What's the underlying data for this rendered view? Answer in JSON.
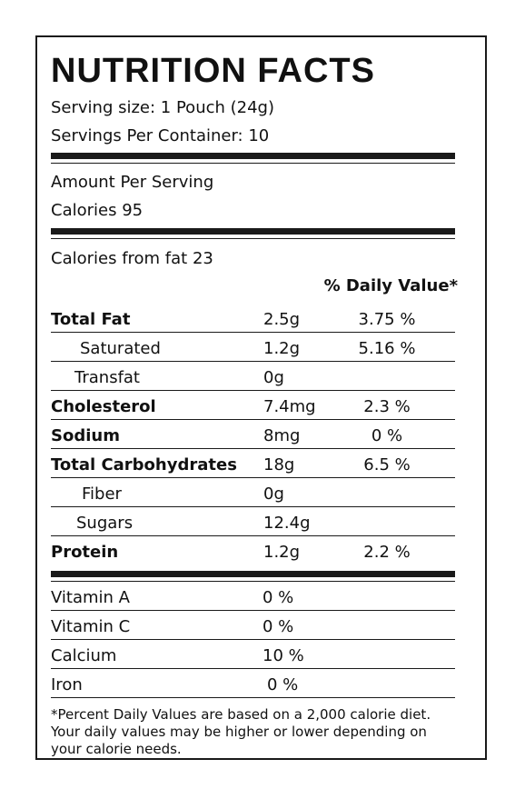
{
  "title": "NUTRITION FACTS",
  "serving_size": "Serving size: 1 Pouch (24g)",
  "servings_per_container": "Servings Per Container: 10",
  "amount_per_serving": "Amount Per Serving",
  "calories": "Calories  95",
  "calories_from_fat": "Calories from fat 23",
  "daily_value_header": "% Daily Value*",
  "nutrients": [
    {
      "label": "Total Fat",
      "amount": "2.5g",
      "dv": "3.75 %"
    },
    {
      "label": "Saturated",
      "amount": "1.2g",
      "dv": "5.16 %"
    },
    {
      "label": "Transfat",
      "amount": "0g",
      "dv": ""
    },
    {
      "label": "Cholesterol",
      "amount": "7.4mg",
      "dv": "2.3 %"
    },
    {
      "label": "Sodium",
      "amount": "8mg",
      "dv": "0 %"
    },
    {
      "label": "Total Carbohydrates",
      "amount": "18g",
      "dv": "6.5 %"
    },
    {
      "label": "Fiber",
      "amount": "0g",
      "dv": ""
    },
    {
      "label": "Sugars",
      "amount": "12.4g",
      "dv": ""
    },
    {
      "label": "Protein",
      "amount": "1.2g",
      "dv": "2.2 %"
    }
  ],
  "vitamins": [
    {
      "label": "Vitamin A",
      "amount": "0 %"
    },
    {
      "label": "Vitamin C",
      "amount": "0 %"
    },
    {
      "label": "Calcium",
      "amount": "10 %"
    },
    {
      "label": "Iron",
      "amount": "0 %"
    }
  ],
  "footnote": "*Percent Daily Values are based on a 2,000 calorie diet. Your daily values may be higher or lower depending on your calorie needs."
}
